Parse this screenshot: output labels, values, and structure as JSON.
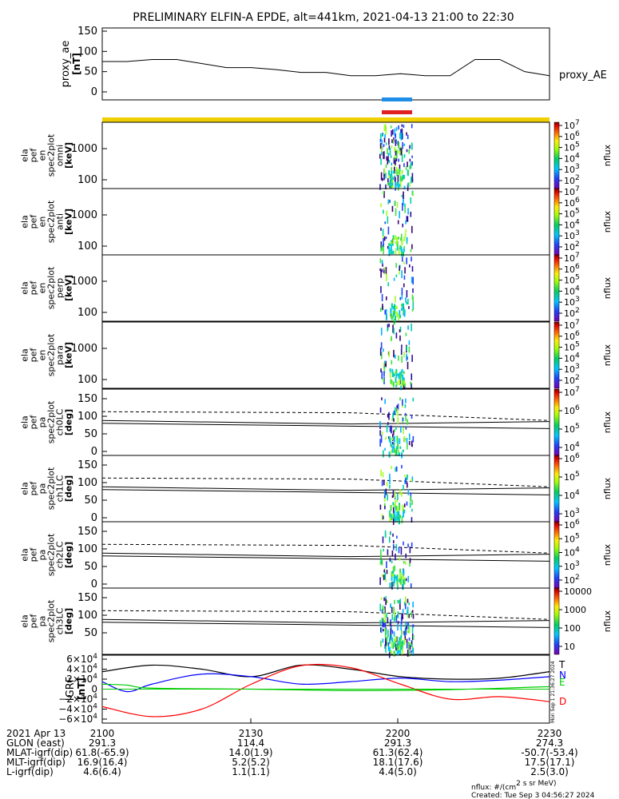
{
  "title": "PRELIMINARY ELFIN-A EPDE, alt=441km, 2021-04-13 21:00 to 22:30",
  "colors": {
    "orbit_bar": "#f0d000",
    "marker_blue": "#1e8ee8",
    "marker_red": "#e02020",
    "T": "#000000",
    "N": "#0000ff",
    "E": "#00cc00",
    "D": "#ff0000"
  },
  "panels": {
    "ae": {
      "ylabel": [
        "proxy_ae",
        "[nT]"
      ],
      "ticks": [
        "150",
        "100",
        "50",
        "0"
      ],
      "legend": "proxy_AE"
    },
    "spec": [
      {
        "ylabel": [
          "ela",
          "pef",
          "en",
          "spec2plot",
          "omni",
          "[keV]"
        ],
        "ticks": [
          "1000",
          "100"
        ],
        "cbar": [
          "10^7",
          "10^6",
          "10^5",
          "10^4",
          "10^3",
          "10^2"
        ],
        "cbar_unit": "nflux"
      },
      {
        "ylabel": [
          "ela",
          "pef",
          "en",
          "spec2plot",
          "anti",
          "[keV]"
        ],
        "ticks": [
          "1000",
          "100"
        ],
        "cbar": [
          "10^7",
          "10^6",
          "10^5",
          "10^4",
          "10^3",
          "10^2"
        ],
        "cbar_unit": "nflux"
      },
      {
        "ylabel": [
          "ela",
          "pef",
          "en",
          "spec2plot",
          "perp",
          "[keV]"
        ],
        "ticks": [
          "1000",
          "100"
        ],
        "cbar": [
          "10^7",
          "10^6",
          "10^5",
          "10^4",
          "10^3",
          "10^2"
        ],
        "cbar_unit": "nflux"
      },
      {
        "ylabel": [
          "ela",
          "pef",
          "en",
          "spec2plot",
          "para",
          "[keV]"
        ],
        "ticks": [
          "1000",
          "100"
        ],
        "cbar": [
          "10^7",
          "10^6",
          "10^5",
          "10^4",
          "10^3",
          "10^2"
        ],
        "cbar_unit": "nflux"
      }
    ],
    "pa": [
      {
        "ylabel": [
          "ela",
          "pef",
          "pa",
          "spec2plot",
          "ch0LC",
          "[deg]"
        ],
        "ticks": [
          "150",
          "100",
          "50",
          "0"
        ],
        "cbar": [
          "10^7",
          "10^6",
          "10^5",
          "10^4"
        ],
        "cbar_unit": "nflux"
      },
      {
        "ylabel": [
          "ela",
          "pef",
          "pa",
          "spec2plot",
          "ch1LC",
          "[deg]"
        ],
        "ticks": [
          "150",
          "100",
          "50",
          "0"
        ],
        "cbar": [
          "10^6",
          "10^5",
          "10^4",
          "10^3"
        ],
        "cbar_unit": "nflux"
      },
      {
        "ylabel": [
          "ela",
          "pef",
          "pa",
          "spec2plot",
          "ch2LC",
          "[deg]"
        ],
        "ticks": [
          "150",
          "100",
          "50",
          "0"
        ],
        "cbar": [
          "10^6",
          "10^5",
          "10^4",
          "10^3",
          "10^2"
        ],
        "cbar_unit": "nflux"
      },
      {
        "ylabel": [
          "ela",
          "pef",
          "pa",
          "spec2plot",
          "ch3LC",
          "[deg]"
        ],
        "ticks": [
          "150",
          "100",
          "50"
        ],
        "cbar": [
          "10000",
          "1000",
          "100",
          "10"
        ],
        "cbar_unit": "nflux"
      }
    ],
    "field": {
      "ylabel": [
        "IGRF",
        "[nT]"
      ],
      "ticks": [
        "6×10^4",
        "4×10^4",
        "2×10^4",
        "0",
        "−2×10^4",
        "−4×10^4",
        "−6×10^4"
      ],
      "legend": [
        "T",
        "N",
        "E",
        "D"
      ],
      "side_note": "Mon Sep 1 21:36:27 2024"
    }
  },
  "chart_data": {
    "type": "line",
    "x_ticks": [
      "2100",
      "2130",
      "2200",
      "2230"
    ],
    "proxy_ae": {
      "name": "proxy_AE",
      "ylim": [
        0,
        150
      ],
      "x": [
        0,
        5,
        10,
        15,
        20,
        25,
        30,
        35,
        40,
        45,
        50,
        55,
        60,
        65,
        70,
        75,
        80,
        85,
        90
      ],
      "values": [
        75,
        75,
        80,
        80,
        70,
        60,
        60,
        55,
        48,
        48,
        40,
        40,
        45,
        40,
        40,
        80,
        80,
        50,
        40
      ]
    },
    "pa_lines": {
      "ylim": [
        0,
        180
      ],
      "dashed": {
        "x": [
          0,
          50,
          90
        ],
        "values": [
          113,
          110,
          88
        ]
      },
      "upper_solid": {
        "x": [
          0,
          50,
          90
        ],
        "values": [
          88,
          78,
          85
        ]
      },
      "lower_solid": {
        "x": [
          0,
          50,
          90
        ],
        "values": [
          80,
          72,
          65
        ]
      }
    },
    "igrf": {
      "ylim": [
        -60000,
        60000
      ],
      "series": [
        {
          "name": "T",
          "x": [
            0,
            10,
            20,
            30,
            40,
            50,
            60,
            70,
            80,
            90
          ],
          "values": [
            35000,
            48000,
            40000,
            25000,
            48000,
            40000,
            25000,
            20000,
            22000,
            35000
          ]
        },
        {
          "name": "N",
          "x": [
            0,
            5,
            10,
            20,
            30,
            40,
            50,
            60,
            70,
            80,
            90
          ],
          "values": [
            15000,
            -5000,
            10000,
            30000,
            25000,
            10000,
            15000,
            22000,
            15000,
            18000,
            25000
          ]
        },
        {
          "name": "E",
          "x": [
            0,
            5,
            10,
            30,
            50,
            70,
            90
          ],
          "values": [
            10000,
            8000,
            2000,
            0,
            -3000,
            -1000,
            5000
          ]
        },
        {
          "name": "D",
          "x": [
            0,
            10,
            20,
            30,
            40,
            50,
            60,
            70,
            80,
            90
          ],
          "values": [
            -35000,
            -55000,
            -40000,
            10000,
            47000,
            43000,
            10000,
            -20000,
            -15000,
            -25000
          ]
        }
      ]
    }
  },
  "footer": {
    "rows": [
      {
        "label": "2021 Apr 13",
        "vals": [
          "2100",
          "2130",
          "2200",
          "2230"
        ]
      },
      {
        "label": "GLON (east)",
        "vals": [
          "291.3",
          "114.4",
          "291.3",
          "274.3"
        ]
      },
      {
        "label": "MLAT-igrf(dip)",
        "vals": [
          "61.8(-65.9)",
          "14.0(1.9)",
          "61.3(62.4)",
          "-50.7(-53.4)"
        ]
      },
      {
        "label": "MLT-igrf(dip)",
        "vals": [
          "16.9(16.4)",
          "5.2(5.2)",
          "18.1(17.6)",
          "17.5(17.1)"
        ]
      },
      {
        "label": "L-igrf(dip)",
        "vals": [
          "4.6(6.4)",
          "1.1(1.1)",
          "4.4(5.0)",
          "2.5(3.0)"
        ]
      }
    ],
    "unit_note": "nflux: #/(cm^2 s sr MeV)",
    "created": "Created: Tue Sep  3 04:56:27 2024"
  }
}
